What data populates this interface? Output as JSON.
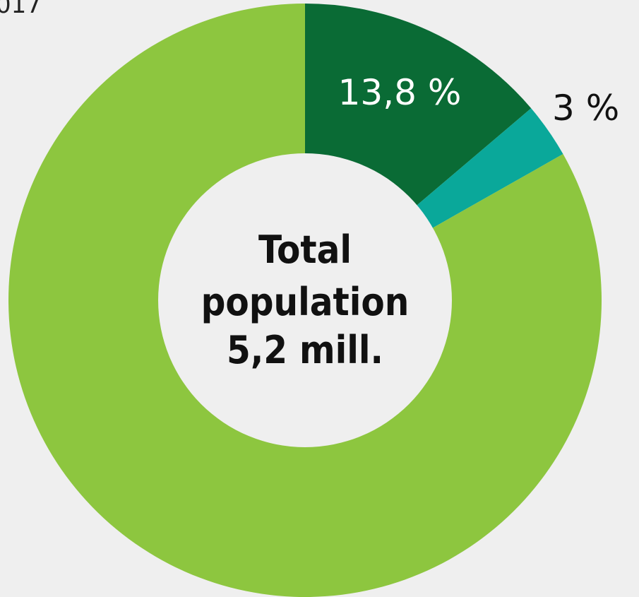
{
  "header": {
    "partial_year_text": "017"
  },
  "chart_data": {
    "type": "pie",
    "variant": "donut",
    "slices": [
      {
        "value": 13.8,
        "label": "13,8 %",
        "color": "#0a6b35",
        "label_color": "#ffffff",
        "label_position": "inside"
      },
      {
        "value": 3,
        "label": "3 %",
        "color": "#0aa89a",
        "label_color": "#111111",
        "label_position": "outside"
      },
      {
        "value": 83.2,
        "label": "",
        "color": "#8dc63f",
        "label_color": "#111111",
        "label_position": "none"
      }
    ],
    "start_angle_deg": 0,
    "direction": "clockwise",
    "center_text": [
      "Total",
      "population",
      "5,2 mill."
    ],
    "center_color": "#efefef",
    "background": "#efefef"
  }
}
